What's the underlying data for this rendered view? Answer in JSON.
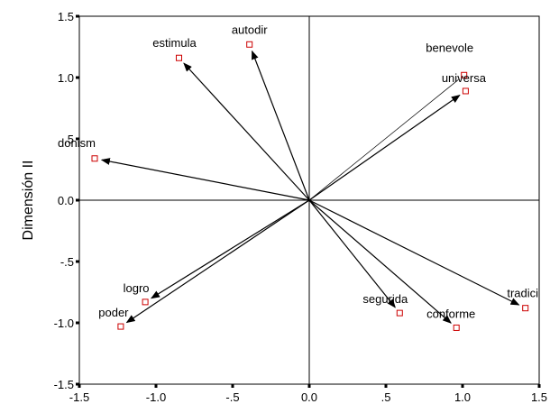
{
  "chart_data": {
    "type": "scatter",
    "title": "",
    "xlabel": "",
    "ylabel": "Dimensión II",
    "xlim": [
      -1.5,
      1.5
    ],
    "ylim": [
      -1.5,
      1.5
    ],
    "x_ticks": [
      "-1.5",
      "-1.0",
      "-.5",
      "0.0",
      ".5",
      "1.0",
      "1.5"
    ],
    "y_ticks": [
      "1.5",
      "1.0",
      ".5",
      "0.0",
      "-.5",
      "-1.0",
      "-1.5"
    ],
    "grid": false,
    "reference_lines": [
      0,
      0
    ],
    "marker_color": "#cc0000",
    "vector_color": "#000000",
    "points": [
      {
        "label": "estimula",
        "x": -0.85,
        "y": 1.16
      },
      {
        "label": "autodir",
        "x": -0.39,
        "y": 1.27
      },
      {
        "label": "benevole",
        "x": 1.01,
        "y": 1.02
      },
      {
        "label": "universa",
        "x": 1.02,
        "y": 0.89
      },
      {
        "label": "donism",
        "x": -1.4,
        "y": 0.34
      },
      {
        "label": "logro",
        "x": -1.07,
        "y": -0.83
      },
      {
        "label": "poder",
        "x": -1.23,
        "y": -1.03
      },
      {
        "label": "segurida",
        "x": 0.59,
        "y": -0.92
      },
      {
        "label": "conforme",
        "x": 0.96,
        "y": -1.04
      },
      {
        "label": "tradici",
        "x": 1.41,
        "y": -0.88
      }
    ]
  }
}
